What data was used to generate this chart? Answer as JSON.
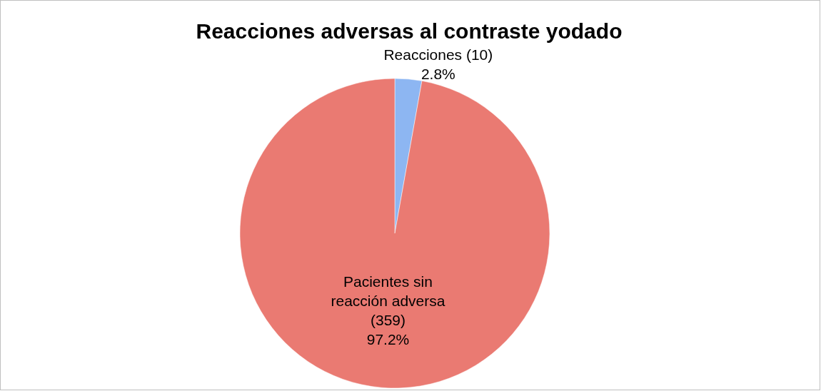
{
  "chart_data": {
    "type": "pie",
    "title": "Reacciones adversas al contraste yodado",
    "categories": [
      "Reacciones (10)",
      "Pacientes sin reacción adversa (359)"
    ],
    "values": [
      2.8,
      97.2
    ],
    "value_labels": [
      "2.8%",
      "97.2%"
    ],
    "colors": [
      "#8db6f2",
      "#ea7a72"
    ]
  }
}
